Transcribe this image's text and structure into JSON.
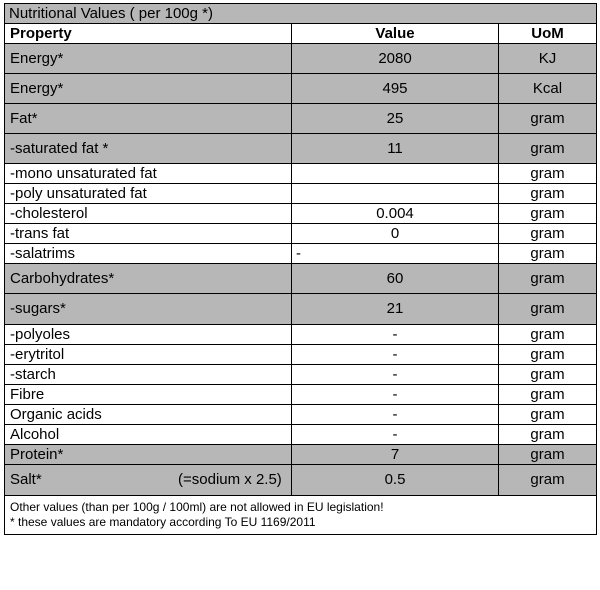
{
  "title": "Nutritional Values ( per 100g *)",
  "headers": {
    "property": "Property",
    "value": "Value",
    "uom": "UoM"
  },
  "rows": [
    {
      "property": "Energy*",
      "value": "2080",
      "uom": "KJ"
    },
    {
      "property": "Energy*",
      "value": "495",
      "uom": "Kcal"
    },
    {
      "property": "Fat*",
      "value": "25",
      "uom": "gram"
    },
    {
      "property": "-saturated fat *",
      "value": "11",
      "uom": "gram"
    },
    {
      "property": "-mono unsaturated fat",
      "value": "",
      "uom": "gram"
    },
    {
      "property": "-poly unsaturated fat",
      "value": "",
      "uom": "gram"
    },
    {
      "property": "-cholesterol",
      "value": "0.004",
      "uom": "gram"
    },
    {
      "property": "-trans fat",
      "value": "0",
      "uom": "gram"
    },
    {
      "property": "-salatrims",
      "value": "-",
      "uom": "gram"
    },
    {
      "property": "Carbohydrates*",
      "value": "60",
      "uom": "gram"
    },
    {
      "property": "-sugars*",
      "value": "21",
      "uom": "gram"
    },
    {
      "property": "-polyoles",
      "value": "-",
      "uom": "gram"
    },
    {
      "property": "-erytritol",
      "value": "-",
      "uom": "gram"
    },
    {
      "property": "-starch",
      "value": "-",
      "uom": "gram"
    },
    {
      "property": "Fibre",
      "value": "-",
      "uom": "gram"
    },
    {
      "property": "Organic acids",
      "value": "-",
      "uom": "gram"
    },
    {
      "property": "Alcohol",
      "value": "-",
      "uom": "gram"
    },
    {
      "property": "Protein*",
      "value": "7",
      "uom": "gram"
    },
    {
      "property": "Salt*",
      "note": "(=sodium x 2.5)",
      "value": "0.5",
      "uom": "gram"
    }
  ],
  "footer": {
    "line1": "Other values  (than  per 100g / 100ml) are not allowed in EU legislation!",
    "line2": "* these values are mandatory according To EU 1169/2011"
  }
}
